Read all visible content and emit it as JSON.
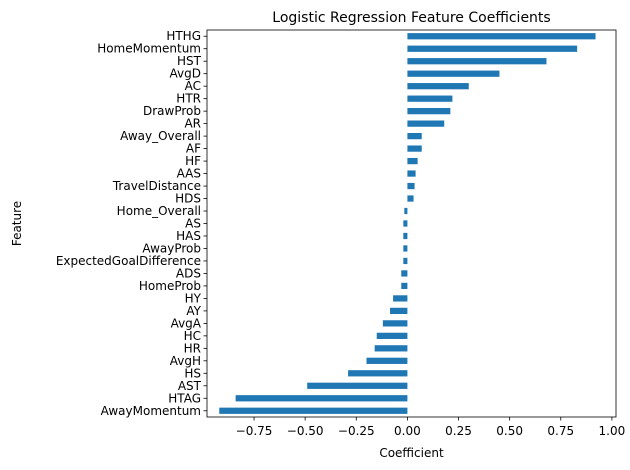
{
  "chart_data": {
    "type": "bar",
    "orientation": "horizontal",
    "title": "Logistic Regression Feature Coefficients",
    "xlabel": "Coefficient",
    "ylabel": "Feature",
    "xlim": [
      -0.98,
      1.02
    ],
    "xticks": [
      -0.75,
      -0.5,
      -0.25,
      0.0,
      0.25,
      0.5,
      0.75,
      1.0
    ],
    "xtick_labels": [
      "−0.75",
      "−0.50",
      "−0.25",
      "0.00",
      "0.25",
      "0.50",
      "0.75",
      "1.00"
    ],
    "grid": false,
    "bar_color": "#1f77b4",
    "categories": [
      "HTHG",
      "HomeMomentum",
      "HST",
      "AvgD",
      "AC",
      "HTR",
      "DrawProb",
      "AR",
      "Away_Overall",
      "AF",
      "HF",
      "AAS",
      "TravelDistance",
      "HDS",
      "Home_Overall",
      "AS",
      "HAS",
      "AwayProb",
      "ExpectedGoalDifference",
      "ADS",
      "HomeProb",
      "HY",
      "AY",
      "AvgA",
      "HC",
      "HR",
      "AvgH",
      "HS",
      "AST",
      "HTAG",
      "AwayMomentum"
    ],
    "values": [
      0.92,
      0.83,
      0.68,
      0.45,
      0.3,
      0.22,
      0.21,
      0.18,
      0.07,
      0.07,
      0.05,
      0.04,
      0.035,
      0.03,
      -0.015,
      -0.02,
      -0.02,
      -0.02,
      -0.02,
      -0.03,
      -0.03,
      -0.07,
      -0.085,
      -0.12,
      -0.15,
      -0.16,
      -0.2,
      -0.29,
      -0.49,
      -0.84,
      -0.92
    ]
  }
}
